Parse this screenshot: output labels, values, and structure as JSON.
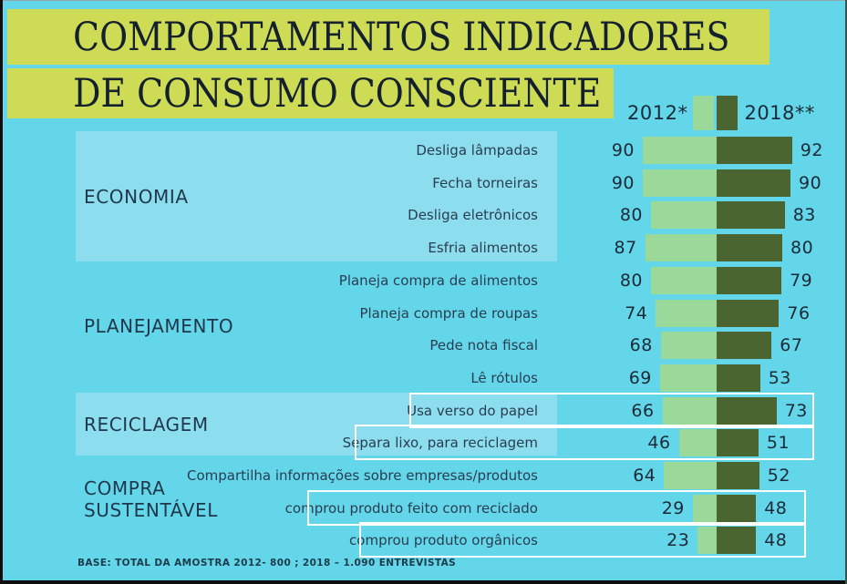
{
  "title": {
    "line1": "COMPORTAMENTOS INDICADORES",
    "line2": "DE CONSUMO CONSCIENTE"
  },
  "legend": {
    "left_label": "2012*",
    "right_label": "2018**"
  },
  "footer": "BASE: TOTAL DA AMOSTRA 2012- 800 ; 2018 – 1.090 ENTREVISTAS",
  "colors": {
    "background": "#63D6E9",
    "category_block": "#8CDEEE",
    "title_highlight": "#CEDC55",
    "series_2012": "#9BD99B",
    "series_2018": "#4A6530",
    "text_dark": "#1b2a38",
    "highlight_box_border": "#FFFFFF"
  },
  "chart_data": {
    "type": "bar",
    "orientation": "horizontal-diverging",
    "value_range": [
      0,
      100
    ],
    "series": [
      {
        "name": "2012",
        "color": "#9BD99B"
      },
      {
        "name": "2018",
        "color": "#4A6530"
      }
    ],
    "categories": [
      {
        "label": "ECONOMIA",
        "highlight_block": true
      },
      {
        "label": "PLANEJAMENTO",
        "highlight_block": false
      },
      {
        "label": "RECICLAGEM",
        "highlight_block": true
      },
      {
        "label": "COMPRA SUSTENTÁVEL",
        "highlight_block": false
      }
    ],
    "rows": [
      {
        "category": "ECONOMIA",
        "label": "Desliga lâmpadas",
        "v2012": 90,
        "v2018": 92,
        "boxed": false
      },
      {
        "category": "ECONOMIA",
        "label": "Fecha torneiras",
        "v2012": 90,
        "v2018": 90,
        "boxed": false
      },
      {
        "category": "ECONOMIA",
        "label": "Desliga eletrônicos",
        "v2012": 80,
        "v2018": 83,
        "boxed": false
      },
      {
        "category": "ECONOMIA",
        "label": "Esfria alimentos",
        "v2012": 87,
        "v2018": 80,
        "boxed": false
      },
      {
        "category": "PLANEJAMENTO",
        "label": "Planeja compra de alimentos",
        "v2012": 80,
        "v2018": 79,
        "boxed": false
      },
      {
        "category": "PLANEJAMENTO",
        "label": "Planeja compra de roupas",
        "v2012": 74,
        "v2018": 76,
        "boxed": false
      },
      {
        "category": "PLANEJAMENTO",
        "label": "Pede nota fiscal",
        "v2012": 68,
        "v2018": 67,
        "boxed": false
      },
      {
        "category": "PLANEJAMENTO",
        "label": "Lê rótulos",
        "v2012": 69,
        "v2018": 53,
        "boxed": false
      },
      {
        "category": "RECICLAGEM",
        "label": "Usa verso do papel",
        "v2012": 66,
        "v2018": 73,
        "boxed": true
      },
      {
        "category": "RECICLAGEM",
        "label": "Separa lixo, para reciclagem",
        "v2012": 46,
        "v2018": 51,
        "boxed": true
      },
      {
        "category": "COMPRA SUSTENTÁVEL",
        "label": "Compartilha informações sobre empresas/produtos",
        "v2012": 64,
        "v2018": 52,
        "boxed": false
      },
      {
        "category": "COMPRA SUSTENTÁVEL",
        "label": "comprou produto feito com reciclado",
        "v2012": 29,
        "v2018": 48,
        "boxed": true
      },
      {
        "category": "COMPRA SUSTENTÁVEL",
        "label": "comprou produto orgânicos",
        "v2012": 23,
        "v2018": 48,
        "boxed": true
      }
    ]
  }
}
